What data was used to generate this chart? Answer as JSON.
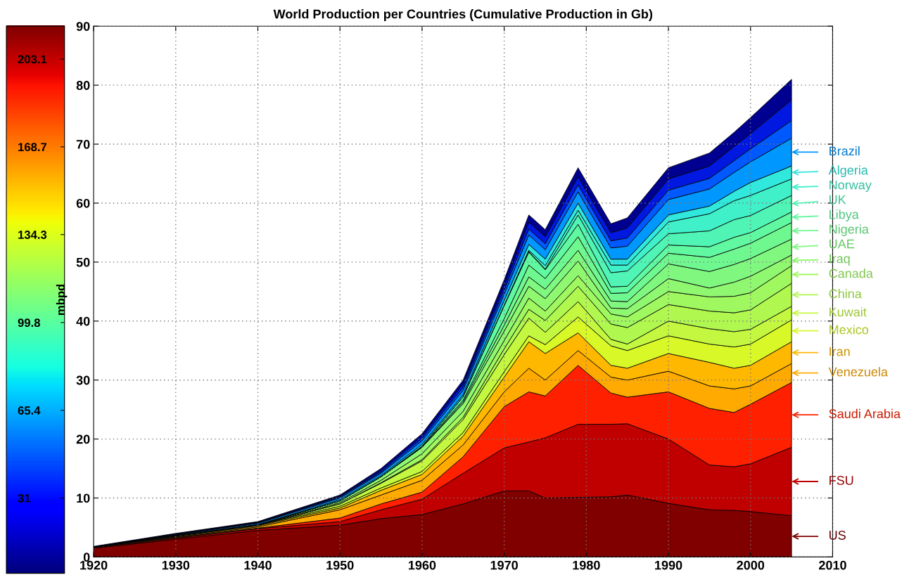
{
  "chart_data": {
    "type": "area",
    "stacked": true,
    "title": "World Production per Countries (Cumulative Production in Gb)",
    "x": [
      1920,
      1930,
      1940,
      1950,
      1955,
      1960,
      1965,
      1970,
      1973,
      1975,
      1979,
      1983,
      1985,
      1990,
      1995,
      1998,
      2000,
      2005
    ],
    "xlim": [
      1920,
      2010
    ],
    "xticks": [
      1920,
      1930,
      1940,
      1950,
      1960,
      1970,
      1980,
      1990,
      2000,
      2010
    ],
    "ylim": [
      0,
      90
    ],
    "yticks": [
      0,
      10,
      20,
      30,
      40,
      50,
      60,
      70,
      80,
      90
    ],
    "grid": true,
    "legend": "right",
    "clabel": "mbpd",
    "clim": [
      1.5,
      216
    ],
    "cticks": [
      31,
      65.4,
      99.8,
      134.3,
      168.7,
      203.1
    ],
    "series": [
      {
        "name": "US",
        "color": "#800000",
        "values": [
          1.5,
          3.0,
          4.5,
          5.4,
          6.5,
          7.2,
          9.0,
          11.2,
          11.2,
          10.0,
          10.1,
          10.2,
          10.5,
          9.1,
          8.0,
          7.9,
          7.7,
          7.0
        ]
      },
      {
        "name": "FSU",
        "color": "#c00000",
        "values": [
          0.1,
          0.2,
          0.3,
          0.6,
          1.5,
          2.6,
          5.2,
          7.3,
          8.3,
          10.2,
          12.4,
          12.3,
          12.1,
          10.9,
          7.6,
          7.4,
          8.1,
          11.6
        ]
      },
      {
        "name": "Saudi Arabia",
        "color": "#ff2000",
        "values": [
          0.0,
          0.1,
          0.1,
          0.6,
          1.0,
          1.2,
          2.8,
          7.0,
          8.5,
          7.1,
          10.0,
          5.3,
          4.5,
          8.0,
          9.6,
          9.2,
          10.1,
          11.0
        ]
      },
      {
        "name": "Venezuela",
        "color": "#ffaa00",
        "values": [
          0.1,
          0.1,
          0.2,
          1.4,
          1.5,
          2.0,
          2.0,
          2.5,
          4.0,
          2.7,
          2.5,
          2.7,
          2.9,
          3.5,
          3.8,
          4.0,
          3.1,
          3.2
        ]
      },
      {
        "name": "Iran",
        "color": "#ffb800",
        "values": [
          0.0,
          0.1,
          0.2,
          0.3,
          0.8,
          1.0,
          1.5,
          2.5,
          4.5,
          4.5,
          3.0,
          2.0,
          2.0,
          3.0,
          4.0,
          3.5,
          3.5,
          3.7
        ]
      },
      {
        "name": "Mexico",
        "color": "#d8f828",
        "values": [
          0.0,
          0.1,
          0.1,
          0.3,
          0.4,
          0.5,
          0.6,
          0.9,
          1.0,
          1.5,
          2.7,
          3.3,
          3.0,
          3.0,
          3.1,
          3.6,
          3.6,
          3.7
        ]
      },
      {
        "name": "Kuwait",
        "color": "#c4f840",
        "values": [
          0.0,
          0.0,
          0.0,
          0.4,
          0.8,
          1.8,
          2.2,
          2.9,
          3.0,
          2.1,
          2.6,
          1.1,
          1.1,
          2.5,
          2.6,
          2.6,
          2.5,
          2.3
        ]
      },
      {
        "name": "China",
        "color": "#b0f850",
        "values": [
          0.0,
          0.0,
          0.0,
          0.0,
          0.1,
          0.2,
          0.4,
          1.0,
          1.5,
          2.0,
          2.6,
          2.6,
          2.8,
          2.8,
          3.0,
          3.2,
          3.3,
          3.9
        ]
      },
      {
        "name": "Canada",
        "color": "#a0f860",
        "values": [
          0.0,
          0.0,
          0.0,
          0.2,
          0.4,
          1.0,
          1.0,
          1.4,
          1.9,
          1.6,
          1.8,
          1.7,
          1.8,
          2.2,
          2.4,
          2.8,
          2.9,
          3.0
        ]
      },
      {
        "name": "Iraq",
        "color": "#90f870",
        "values": [
          0.0,
          0.1,
          0.1,
          0.3,
          0.6,
          1.1,
          1.3,
          1.6,
          2.0,
          2.1,
          2.5,
          1.0,
          1.4,
          2.2,
          1.5,
          2.4,
          2.8,
          1.8
        ]
      },
      {
        "name": "UAE",
        "color": "#80f880",
        "values": [
          0.0,
          0.0,
          0.0,
          0.0,
          0.0,
          0.0,
          0.3,
          1.0,
          1.6,
          1.6,
          1.8,
          1.2,
          1.2,
          2.5,
          2.8,
          3.0,
          3.0,
          2.7
        ]
      },
      {
        "name": "Nigeria",
        "color": "#70f890",
        "values": [
          0.0,
          0.0,
          0.0,
          0.0,
          0.0,
          0.1,
          0.3,
          1.1,
          2.0,
          1.8,
          2.3,
          1.3,
          1.5,
          1.8,
          2.4,
          2.6,
          2.6,
          2.8
        ]
      },
      {
        "name": "Libya",
        "color": "#60f8a0",
        "values": [
          0.0,
          0.0,
          0.0,
          0.0,
          0.0,
          0.1,
          0.6,
          2.2,
          2.2,
          1.5,
          2.1,
          1.1,
          1.1,
          1.4,
          1.8,
          2.0,
          1.8,
          1.8
        ]
      },
      {
        "name": "UK",
        "color": "#50f4b4",
        "values": [
          0.0,
          0.0,
          0.0,
          0.0,
          0.0,
          0.0,
          0.0,
          0.1,
          0.1,
          0.1,
          1.6,
          2.4,
          2.6,
          1.9,
          2.7,
          3.0,
          2.9,
          2.8
        ]
      },
      {
        "name": "Norway",
        "color": "#40f0c8",
        "values": [
          0.0,
          0.0,
          0.0,
          0.0,
          0.0,
          0.0,
          0.0,
          0.0,
          0.2,
          0.6,
          0.8,
          1.3,
          1.0,
          2.0,
          2.9,
          3.2,
          3.4,
          2.8
        ]
      },
      {
        "name": "Algeria",
        "color": "#30e8dc",
        "values": [
          0.0,
          0.0,
          0.0,
          0.2,
          0.2,
          0.3,
          0.3,
          0.8,
          1.0,
          1.1,
          1.2,
          1.0,
          1.0,
          1.2,
          1.3,
          1.6,
          2.2,
          2.2
        ]
      },
      {
        "name": "Brazil",
        "color": "#0098ff",
        "values": [
          0.0,
          0.1,
          0.2,
          0.3,
          0.4,
          0.6,
          0.8,
          1.1,
          1.6,
          1.6,
          1.9,
          1.9,
          2.2,
          2.6,
          2.9,
          3.2,
          3.5,
          4.7
        ]
      },
      {
        "color": "#0058ff",
        "values": [
          0.0,
          0.1,
          0.1,
          0.2,
          0.2,
          0.4,
          0.5,
          0.7,
          1.0,
          1.0,
          1.2,
          1.2,
          1.4,
          1.6,
          1.8,
          2.0,
          2.2,
          3.0
        ]
      },
      {
        "color": "#0018e0",
        "values": [
          0.0,
          0.0,
          0.1,
          0.1,
          0.3,
          0.4,
          0.6,
          0.8,
          1.2,
          1.2,
          1.4,
          1.4,
          1.7,
          1.9,
          2.1,
          2.4,
          2.6,
          3.5
        ]
      },
      {
        "color": "#000090",
        "values": [
          0.1,
          0.1,
          0.1,
          0.2,
          0.3,
          0.4,
          0.6,
          0.9,
          1.2,
          1.2,
          1.5,
          1.5,
          1.7,
          1.9,
          2.2,
          2.4,
          2.7,
          3.5
        ]
      }
    ]
  }
}
